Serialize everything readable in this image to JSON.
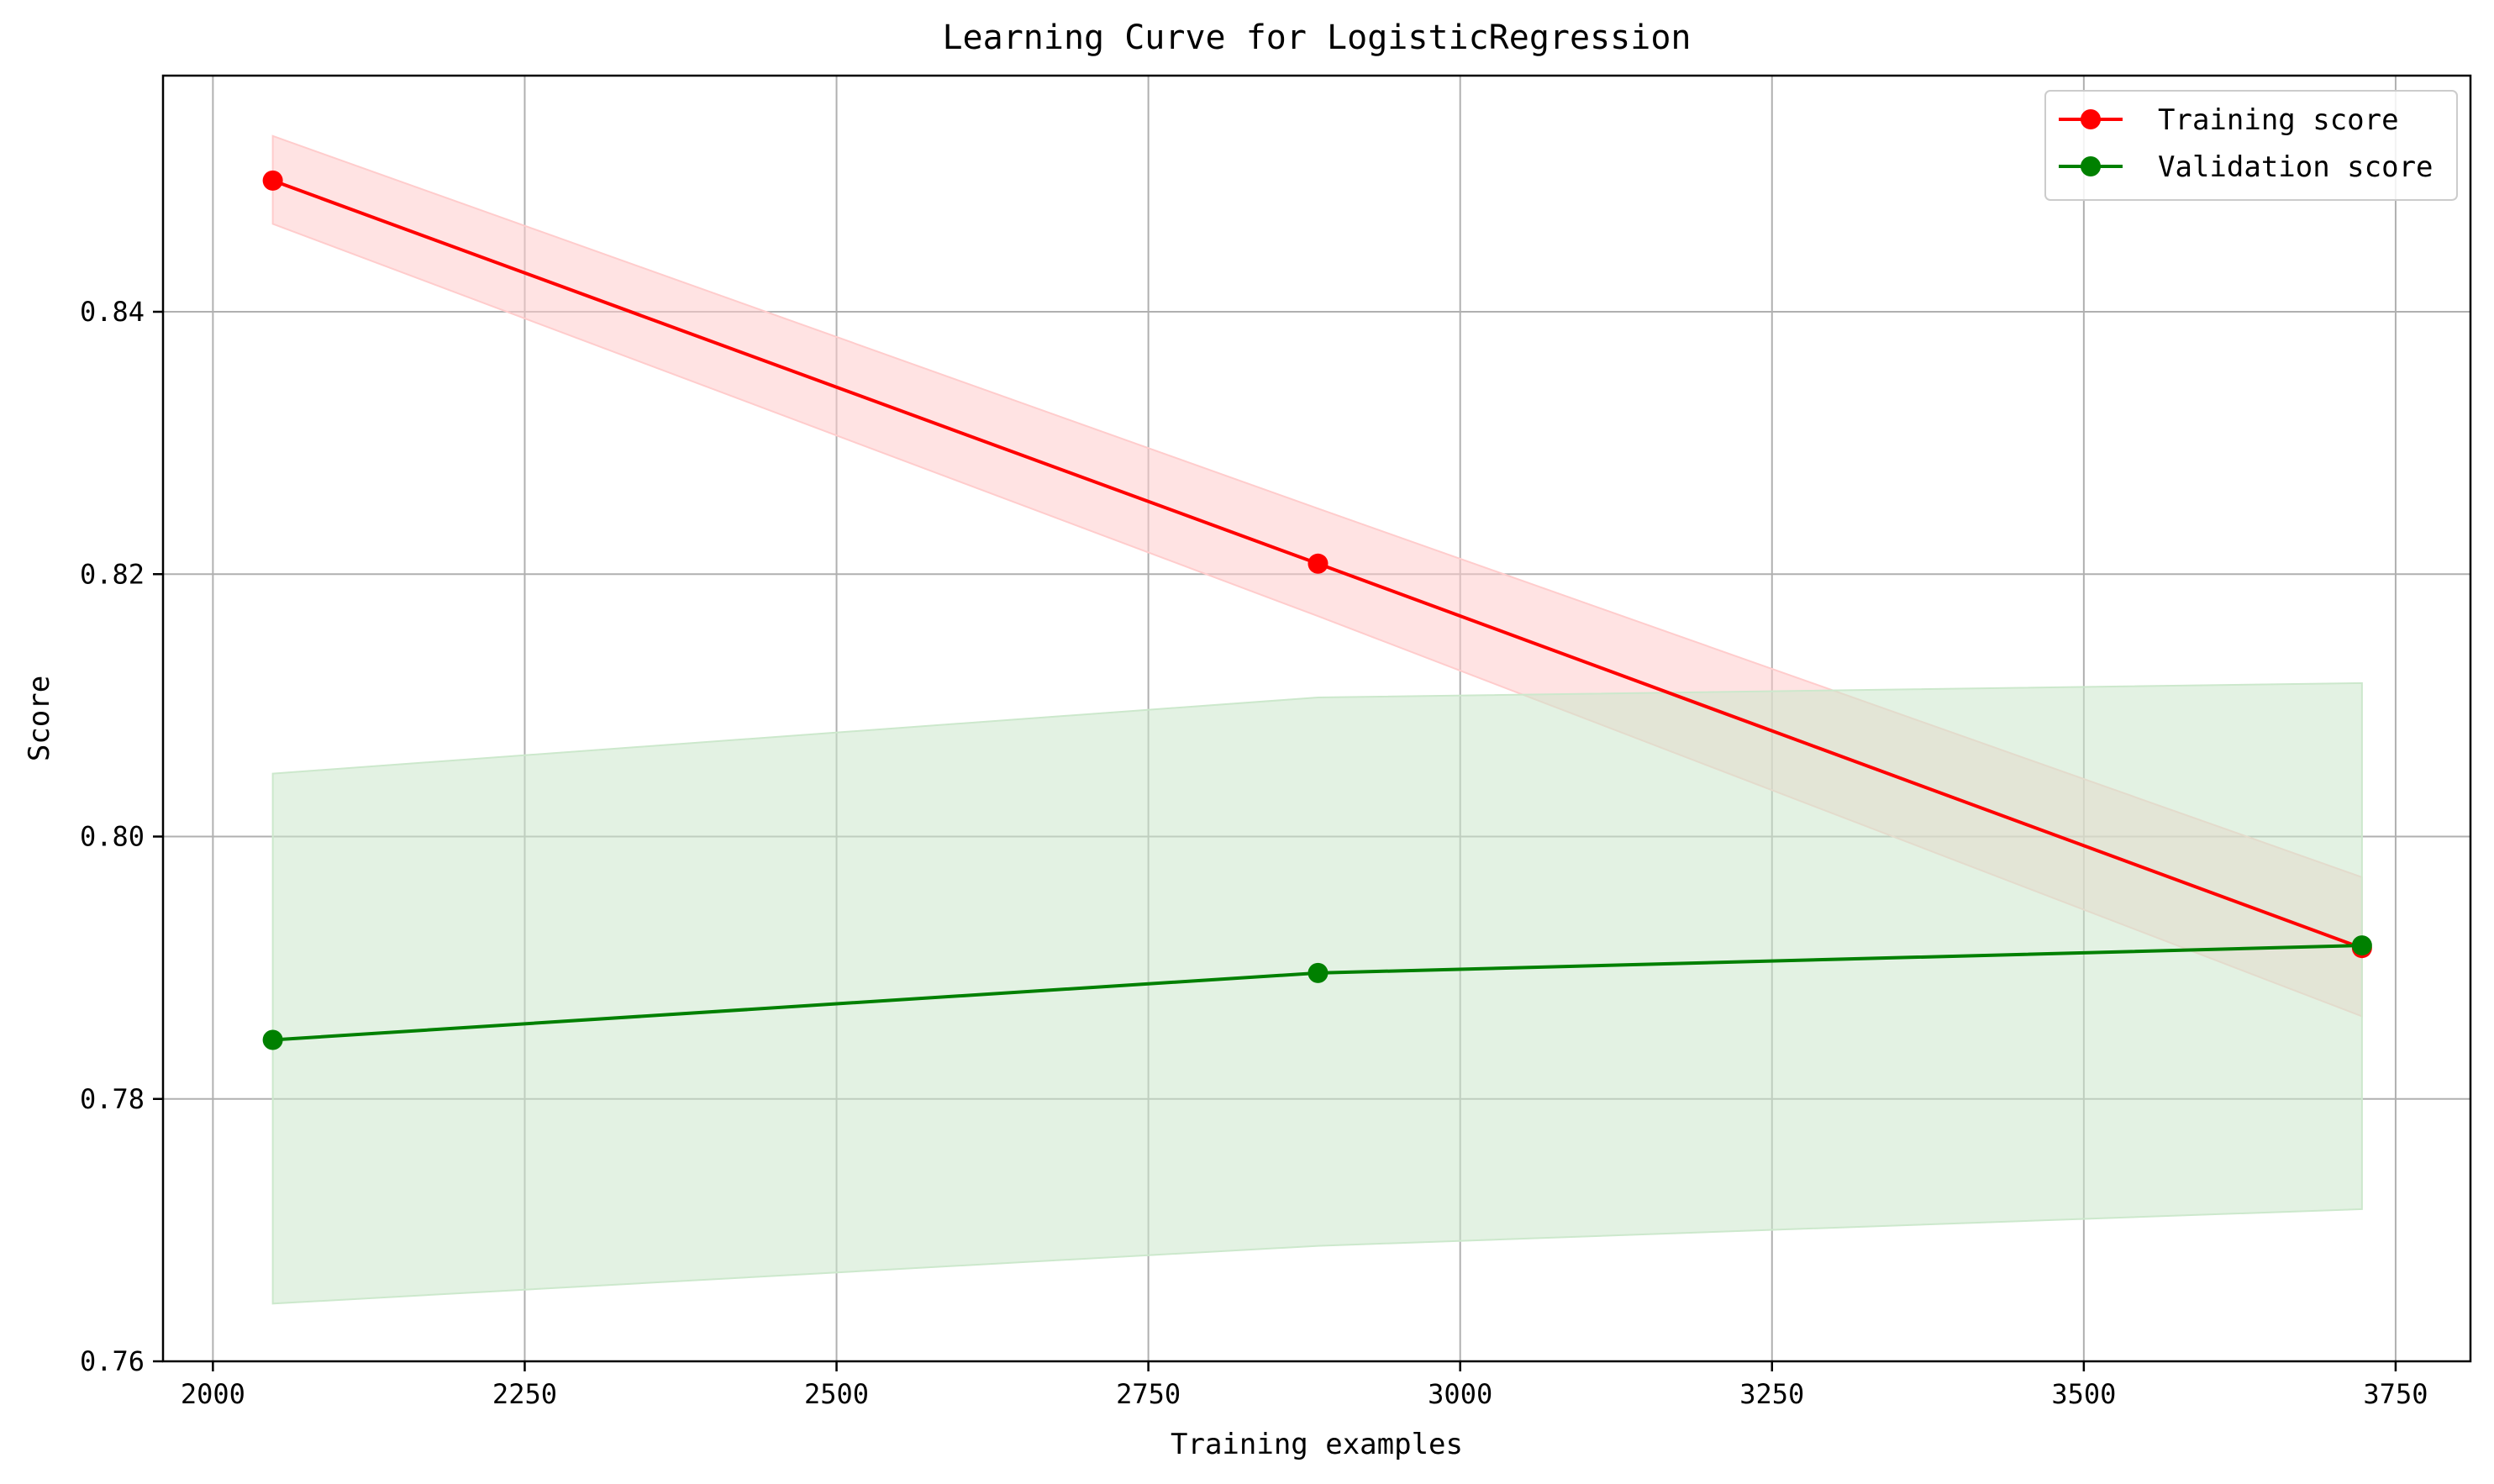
{
  "chart_data": {
    "type": "line",
    "title": "Learning Curve for LogisticRegression",
    "xlabel": "Training examples",
    "ylabel": "Score",
    "xlim": [
      1960,
      3810
    ],
    "ylim": [
      0.76,
      0.858
    ],
    "xticks": [
      2000,
      2250,
      2500,
      2750,
      3000,
      3250,
      3500,
      3750
    ],
    "yticks": [
      0.76,
      0.78,
      0.8,
      0.82,
      0.84
    ],
    "ytick_labels": [
      "0.76",
      "0.78",
      "0.80",
      "0.82",
      "0.84"
    ],
    "grid": true,
    "legend": "top-right",
    "x": [
      2048,
      2886,
      3723
    ],
    "series": [
      {
        "name": "Training score",
        "color": "#ff0000",
        "values": [
          0.85,
          0.8208,
          0.7915
        ],
        "band_upper": [
          0.8534,
          0.825,
          0.7969
        ],
        "band_lower": [
          0.8467,
          0.8168,
          0.7863
        ],
        "band_color": "#ffcccc"
      },
      {
        "name": "Validation score",
        "color": "#008000",
        "values": [
          0.7845,
          0.7896,
          0.7917
        ],
        "band_upper": [
          0.8048,
          0.8106,
          0.8117
        ],
        "band_lower": [
          0.7644,
          0.7688,
          0.7716
        ],
        "band_color": "#cce8cc"
      }
    ]
  }
}
